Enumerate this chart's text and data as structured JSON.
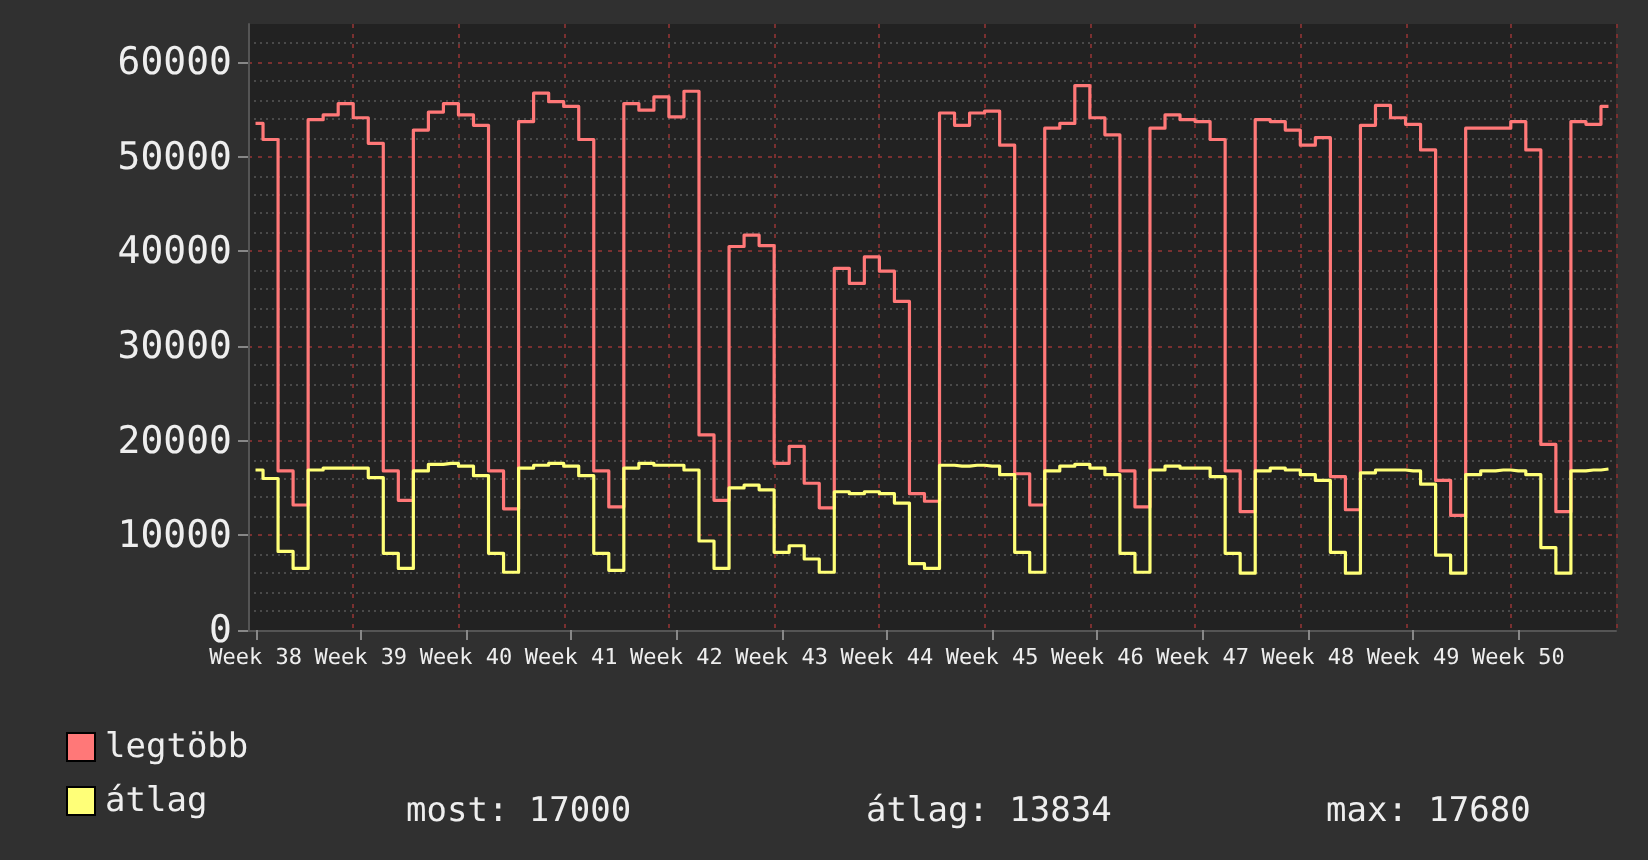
{
  "chart_data": {
    "type": "step",
    "categories": [
      "Week 38",
      null,
      null,
      null,
      null,
      null,
      null,
      "Week 39",
      null,
      null,
      null,
      null,
      null,
      null,
      "Week 40",
      null,
      null,
      null,
      null,
      null,
      null,
      "Week 41",
      null,
      null,
      null,
      null,
      null,
      null,
      "Week 42",
      null,
      null,
      null,
      null,
      null,
      null,
      "Week 43",
      null,
      null,
      null,
      null,
      null,
      null,
      "Week 44",
      null,
      null,
      null,
      null,
      null,
      null,
      "Week 45",
      null,
      null,
      null,
      null,
      null,
      null,
      "Week 46",
      null,
      null,
      null,
      null,
      null,
      null,
      "Week 47",
      null,
      null,
      null,
      null,
      null,
      null,
      "Week 48",
      null,
      null,
      null,
      null,
      null,
      null,
      "Week 49",
      null,
      null,
      null,
      null,
      null,
      null,
      "Week 50",
      null,
      null,
      null,
      null,
      null,
      null
    ],
    "series": [
      {
        "name": "legtöbb",
        "color": "#ff7878",
        "values": [
          53500,
          51800,
          16800,
          13200,
          53900,
          54400,
          55600,
          54100,
          51400,
          16800,
          13700,
          52800,
          54700,
          55600,
          54400,
          53300,
          16800,
          12800,
          53700,
          56700,
          55800,
          55300,
          51800,
          16800,
          13000,
          55600,
          54900,
          56300,
          54200,
          56900,
          20600,
          13700,
          40500,
          41700,
          40600,
          17600,
          19400,
          15500,
          12900,
          38200,
          36600,
          39400,
          37900,
          34700,
          14400,
          13600,
          54600,
          53300,
          54600,
          54800,
          51200,
          16500,
          13200,
          53000,
          53500,
          57500,
          54100,
          52300,
          16800,
          13000,
          53000,
          54400,
          53900,
          53700,
          51800,
          16800,
          12500,
          53900,
          53700,
          52800,
          51200,
          52000,
          16200,
          12700,
          53300,
          55400,
          54100,
          53400,
          50700,
          15800,
          12100,
          53000,
          53000,
          53000,
          53700,
          50700,
          19600,
          12500,
          53700,
          53400,
          55300
        ]
      },
      {
        "name": "átlag",
        "color": "#ffff78",
        "values": [
          16900,
          16000,
          8300,
          6500,
          16900,
          17100,
          17100,
          17100,
          16100,
          8100,
          6500,
          16800,
          17500,
          17600,
          17300,
          16300,
          8100,
          6100,
          17100,
          17400,
          17600,
          17300,
          16300,
          8100,
          6300,
          17100,
          17600,
          17400,
          17400,
          16900,
          9400,
          6500,
          15000,
          15300,
          14800,
          8200,
          8900,
          7500,
          6100,
          14600,
          14400,
          14600,
          14400,
          13400,
          7000,
          6500,
          17400,
          17300,
          17400,
          17300,
          16400,
          8200,
          6100,
          16800,
          17300,
          17500,
          17100,
          16400,
          8100,
          6100,
          16900,
          17300,
          17100,
          17100,
          16200,
          8100,
          6000,
          16800,
          17100,
          16900,
          16400,
          15800,
          8200,
          6000,
          16600,
          16900,
          16900,
          16800,
          15400,
          7900,
          6000,
          16400,
          16800,
          16900,
          16800,
          16400,
          8700,
          6000,
          16800,
          16900,
          17000
        ]
      }
    ],
    "ylim": [
      0,
      64000
    ],
    "yticks": [
      0,
      10000,
      20000,
      30000,
      40000,
      50000,
      60000
    ],
    "grid": true,
    "legend": "bottom left",
    "annotations": [
      "most: 17000",
      "átlag: 13834",
      "max: 17680"
    ]
  }
}
